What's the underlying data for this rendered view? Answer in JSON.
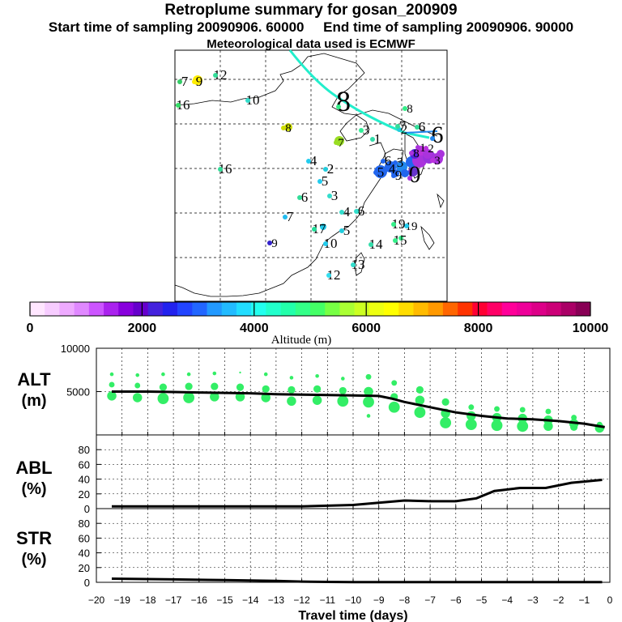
{
  "chart_data": [
    {
      "type": "map",
      "title": "Retroplume summary for gosan_200909",
      "subtitle_start": "Start time of sampling 20090906. 60000",
      "subtitle_end": "End time of sampling 20090906. 90000",
      "subtitle_met": "Meteorological data used is ECMWF",
      "day_labels": [
        {
          "text": "7",
          "color": "#33cc66"
        },
        {
          "text": "9",
          "color": "#ffee00"
        },
        {
          "text": "12",
          "color": "#33dd99"
        },
        {
          "text": "16",
          "color": "#33dd66"
        },
        {
          "text": "10",
          "color": "#33ddcc"
        },
        {
          "text": "8",
          "color": "#ccdd00"
        },
        {
          "text": "8",
          "color": "#33ee88"
        },
        {
          "text": "7",
          "color": "#99dd22"
        },
        {
          "text": "3",
          "color": "#33ee99"
        },
        {
          "text": "1",
          "color": "#33ddaa"
        },
        {
          "text": "2",
          "color": "#22ccdd"
        },
        {
          "text": "4",
          "color": "#22ccee"
        },
        {
          "text": "2",
          "color": "#22ccdd"
        },
        {
          "text": "16",
          "color": "#33dd99"
        },
        {
          "text": "5",
          "color": "#22ccee"
        },
        {
          "text": "6",
          "color": "#33dd99"
        },
        {
          "text": "3",
          "color": "#33ddcc"
        },
        {
          "text": "4",
          "color": "#33ddcc"
        },
        {
          "text": "6",
          "color": "#33ddcc"
        },
        {
          "text": "7",
          "color": "#22bbee"
        },
        {
          "text": "19",
          "color": "#22ccee"
        },
        {
          "text": "5",
          "color": "#22ccdd"
        },
        {
          "text": "17",
          "color": "#22dd99"
        },
        {
          "text": "19",
          "color": "#33ee88"
        },
        {
          "text": "9",
          "color": "#3322cc"
        },
        {
          "text": "10",
          "color": "#22ccee"
        },
        {
          "text": "14",
          "color": "#33ddaa"
        },
        {
          "text": "15",
          "color": "#33ee88"
        },
        {
          "text": "13",
          "color": "#33ddcc"
        },
        {
          "text": "12",
          "color": "#33ddee"
        },
        {
          "text": "6",
          "color": "#2266ee"
        },
        {
          "text": "3",
          "color": "#2266ee"
        },
        {
          "text": "5",
          "color": "#2266ee"
        },
        {
          "text": "4",
          "color": "#2266ee"
        },
        {
          "text": "9",
          "color": "#2266ee"
        },
        {
          "text": "0",
          "color": "#aa33dd"
        },
        {
          "text": "8",
          "color": "#aa33dd"
        },
        {
          "text": "1",
          "color": "#aa33dd"
        },
        {
          "text": "2",
          "color": "#bb33dd"
        },
        {
          "text": "3",
          "color": "#bb33dd"
        },
        {
          "text": "6",
          "color": "#2288ee"
        },
        {
          "text": "8",
          "color": "#33ee88"
        },
        {
          "text": "7",
          "color": "#33dd99"
        },
        {
          "text": "6",
          "color": "#33dd99"
        }
      ]
    },
    {
      "type": "colorbar",
      "xlabel": "Altitude (m)",
      "range": [
        0,
        10000
      ],
      "ticks": [
        {
          "value": 0,
          "label": "0"
        },
        {
          "value": 2000,
          "label": "2000"
        },
        {
          "value": 4000,
          "label": "4000"
        },
        {
          "value": 6000,
          "label": "6000"
        },
        {
          "value": 8000,
          "label": "8000"
        },
        {
          "value": 10000,
          "label": "10000"
        }
      ],
      "colors": [
        "#ffe6ff",
        "#f7ccff",
        "#eeaaff",
        "#e088ff",
        "#cc55ff",
        "#aa22ee",
        "#8800dd",
        "#6600cc",
        "#4422dd",
        "#2222ee",
        "#2244ff",
        "#2266ff",
        "#2299ff",
        "#22bbff",
        "#22ddff",
        "#22ffee",
        "#22ffcc",
        "#22ffaa",
        "#33ff88",
        "#44ff66",
        "#77ff44",
        "#aaff33",
        "#ccff22",
        "#eeff11",
        "#ffff00",
        "#ffdd00",
        "#ffbb00",
        "#ff9900",
        "#ff6600",
        "#ff3300",
        "#ff0033",
        "#ff0066",
        "#ff0099",
        "#ee0099",
        "#dd0088",
        "#cc0077",
        "#aa0066",
        "#880055"
      ]
    },
    {
      "type": "line",
      "panel": "ALT",
      "ylabel": "ALT",
      "yunit": "(m)",
      "ylim": [
        0,
        10000
      ],
      "yticks": [
        {
          "value": 5000,
          "label": "5000"
        },
        {
          "value": 10000,
          "label": "10000"
        }
      ],
      "x": [
        -19.4,
        -18,
        -17,
        -16,
        -15,
        -14,
        -13,
        -12,
        -11,
        -10,
        -9,
        -8.5,
        -8,
        -7,
        -6,
        -5,
        -4,
        -3,
        -2,
        -1,
        -0.2
      ],
      "series": [
        {
          "name": "mean",
          "values": [
            5000,
            5000,
            4950,
            4900,
            4850,
            4800,
            4700,
            4650,
            4600,
            4550,
            4500,
            4200,
            3800,
            3200,
            2600,
            2200,
            1900,
            1800,
            1600,
            1300,
            900
          ]
        }
      ],
      "scatter": [
        {
          "x": -19.4,
          "y": 7000,
          "s": 2
        },
        {
          "x": -19.4,
          "y": 5800,
          "s": 3
        },
        {
          "x": -19.4,
          "y": 4500,
          "s": 5
        },
        {
          "x": -18.4,
          "y": 6900,
          "s": 2
        },
        {
          "x": -18.4,
          "y": 5700,
          "s": 3
        },
        {
          "x": -18.4,
          "y": 4300,
          "s": 5
        },
        {
          "x": -17.4,
          "y": 7000,
          "s": 2
        },
        {
          "x": -17.4,
          "y": 5500,
          "s": 4
        },
        {
          "x": -17.4,
          "y": 4200,
          "s": 6
        },
        {
          "x": -16.4,
          "y": 7000,
          "s": 2
        },
        {
          "x": -16.4,
          "y": 5600,
          "s": 4
        },
        {
          "x": -16.4,
          "y": 4300,
          "s": 6
        },
        {
          "x": -15.4,
          "y": 7100,
          "s": 2
        },
        {
          "x": -15.4,
          "y": 5600,
          "s": 4
        },
        {
          "x": -15.4,
          "y": 4400,
          "s": 5
        },
        {
          "x": -14.4,
          "y": 7200,
          "s": 1
        },
        {
          "x": -14.4,
          "y": 5500,
          "s": 4
        },
        {
          "x": -14.4,
          "y": 4400,
          "s": 5
        },
        {
          "x": -13.4,
          "y": 7000,
          "s": 2
        },
        {
          "x": -13.4,
          "y": 5300,
          "s": 4
        },
        {
          "x": -13.4,
          "y": 4300,
          "s": 5
        },
        {
          "x": -12.4,
          "y": 6600,
          "s": 2
        },
        {
          "x": -12.4,
          "y": 5200,
          "s": 4
        },
        {
          "x": -12.4,
          "y": 3900,
          "s": 5
        },
        {
          "x": -11.4,
          "y": 6800,
          "s": 2
        },
        {
          "x": -11.4,
          "y": 5300,
          "s": 4
        },
        {
          "x": -11.4,
          "y": 4000,
          "s": 5
        },
        {
          "x": -10.4,
          "y": 6500,
          "s": 2
        },
        {
          "x": -10.4,
          "y": 5100,
          "s": 4
        },
        {
          "x": -10.4,
          "y": 3900,
          "s": 6
        },
        {
          "x": -9.4,
          "y": 6700,
          "s": 3
        },
        {
          "x": -9.4,
          "y": 5000,
          "s": 5
        },
        {
          "x": -9.4,
          "y": 3800,
          "s": 6
        },
        {
          "x": -9.4,
          "y": 2200,
          "s": 2
        },
        {
          "x": -8.4,
          "y": 6000,
          "s": 3
        },
        {
          "x": -8.4,
          "y": 4400,
          "s": 4
        },
        {
          "x": -8.4,
          "y": 3200,
          "s": 6
        },
        {
          "x": -7.4,
          "y": 5200,
          "s": 4
        },
        {
          "x": -7.4,
          "y": 4000,
          "s": 5
        },
        {
          "x": -7.4,
          "y": 2600,
          "s": 6
        },
        {
          "x": -6.4,
          "y": 3800,
          "s": 4
        },
        {
          "x": -6.4,
          "y": 2500,
          "s": 5
        },
        {
          "x": -6.4,
          "y": 1400,
          "s": 6
        },
        {
          "x": -5.4,
          "y": 3200,
          "s": 3
        },
        {
          "x": -5.4,
          "y": 2200,
          "s": 5
        },
        {
          "x": -5.4,
          "y": 1200,
          "s": 6
        },
        {
          "x": -4.4,
          "y": 3000,
          "s": 3
        },
        {
          "x": -4.4,
          "y": 2000,
          "s": 5
        },
        {
          "x": -4.4,
          "y": 1100,
          "s": 6
        },
        {
          "x": -3.4,
          "y": 2900,
          "s": 3
        },
        {
          "x": -3.4,
          "y": 1900,
          "s": 5
        },
        {
          "x": -3.4,
          "y": 1000,
          "s": 6
        },
        {
          "x": -2.4,
          "y": 2700,
          "s": 3
        },
        {
          "x": -2.4,
          "y": 1700,
          "s": 5
        },
        {
          "x": -2.4,
          "y": 1000,
          "s": 5
        },
        {
          "x": -1.4,
          "y": 2000,
          "s": 3
        },
        {
          "x": -1.4,
          "y": 1300,
          "s": 5
        },
        {
          "x": -1.4,
          "y": 900,
          "s": 4
        },
        {
          "x": -0.4,
          "y": 1200,
          "s": 3
        },
        {
          "x": -0.4,
          "y": 800,
          "s": 5
        }
      ]
    },
    {
      "type": "line",
      "panel": "ABL",
      "ylabel": "ABL",
      "yunit": "(%)",
      "ylim": [
        0,
        100
      ],
      "yticks": [
        {
          "value": 0,
          "label": "0"
        },
        {
          "value": 20,
          "label": "20"
        },
        {
          "value": 40,
          "label": "40"
        },
        {
          "value": 60,
          "label": "60"
        },
        {
          "value": 80,
          "label": "80"
        }
      ],
      "x": [
        -19.4,
        -18,
        -16,
        -14,
        -12,
        -11,
        -10,
        -9,
        -8,
        -7,
        -6,
        -5.2,
        -4.5,
        -3.5,
        -2.5,
        -1.5,
        -0.3
      ],
      "series": [
        {
          "name": "ABL",
          "values": [
            3,
            3,
            3,
            3,
            3,
            4,
            5,
            8,
            11,
            10,
            10,
            14,
            24,
            28,
            28,
            35,
            39
          ]
        }
      ]
    },
    {
      "type": "line",
      "panel": "STR",
      "ylabel": "STR",
      "yunit": "(%)",
      "ylim": [
        0,
        100
      ],
      "yticks": [
        {
          "value": 0,
          "label": "0"
        },
        {
          "value": 20,
          "label": "20"
        },
        {
          "value": 40,
          "label": "40"
        },
        {
          "value": 60,
          "label": "60"
        },
        {
          "value": 80,
          "label": "80"
        }
      ],
      "xlabel": "Travel time (days)",
      "xlim": [
        -20,
        0
      ],
      "xticks": [
        {
          "value": -20,
          "label": "−20"
        },
        {
          "value": -19,
          "label": "−19"
        },
        {
          "value": -18,
          "label": "−18"
        },
        {
          "value": -17,
          "label": "−17"
        },
        {
          "value": -16,
          "label": "−16"
        },
        {
          "value": -15,
          "label": "−15"
        },
        {
          "value": -14,
          "label": "−14"
        },
        {
          "value": -13,
          "label": "−13"
        },
        {
          "value": -12,
          "label": "−12"
        },
        {
          "value": -11,
          "label": "−11"
        },
        {
          "value": -10,
          "label": "−10"
        },
        {
          "value": -9,
          "label": "−9"
        },
        {
          "value": -8,
          "label": "−8"
        },
        {
          "value": -7,
          "label": "−7"
        },
        {
          "value": -6,
          "label": "−6"
        },
        {
          "value": -5,
          "label": "−5"
        },
        {
          "value": -4,
          "label": "−4"
        },
        {
          "value": -3,
          "label": "−3"
        },
        {
          "value": -2,
          "label": "−2"
        },
        {
          "value": -1,
          "label": "−1"
        },
        {
          "value": 0,
          "label": "0"
        }
      ],
      "x": [
        -19.4,
        -17,
        -15,
        -13,
        -12,
        -11,
        -10,
        -9,
        -5,
        -0.3
      ],
      "series": [
        {
          "name": "STR",
          "values": [
            5,
            4,
            3,
            2,
            1,
            0.5,
            0.3,
            0.2,
            0.2,
            0.2
          ]
        }
      ]
    }
  ]
}
